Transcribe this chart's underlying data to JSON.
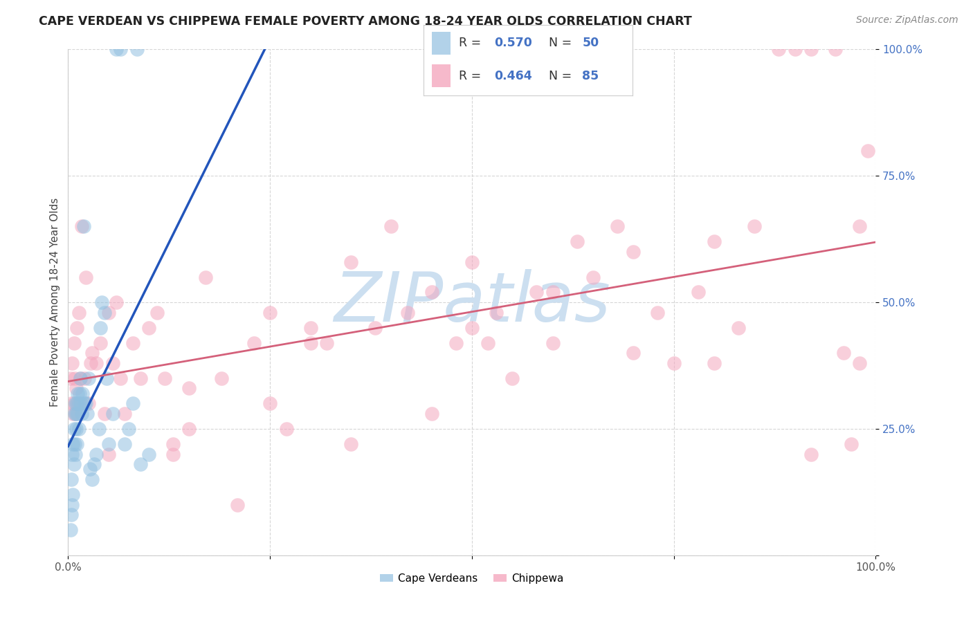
{
  "title": "CAPE VERDEAN VS CHIPPEWA FEMALE POVERTY AMONG 18-24 YEAR OLDS CORRELATION CHART",
  "source": "Source: ZipAtlas.com",
  "ylabel": "Female Poverty Among 18-24 Year Olds",
  "xlim": [
    0,
    1
  ],
  "ylim": [
    0,
    1
  ],
  "cape_verdean_color": "#92c0e0",
  "chippewa_color": "#f4a8bf",
  "trend_blue_color": "#2255bb",
  "trend_pink_color": "#d4607a",
  "watermark_color": "#ccdff0",
  "legend_value_color": "#4472c4",
  "cape_verdean_R": 0.57,
  "cape_verdean_N": 50,
  "chippewa_R": 0.464,
  "chippewa_N": 85,
  "cv_x": [
    0.003,
    0.004,
    0.004,
    0.005,
    0.005,
    0.006,
    0.006,
    0.007,
    0.007,
    0.008,
    0.008,
    0.009,
    0.009,
    0.01,
    0.01,
    0.011,
    0.011,
    0.012,
    0.012,
    0.013,
    0.013,
    0.014,
    0.015,
    0.016,
    0.017,
    0.018,
    0.019,
    0.02,
    0.022,
    0.024,
    0.025,
    0.027,
    0.03,
    0.032,
    0.035,
    0.038,
    0.04,
    0.042,
    0.045,
    0.048,
    0.05,
    0.055,
    0.06,
    0.065,
    0.07,
    0.075,
    0.08,
    0.085,
    0.09,
    0.1
  ],
  "cv_y": [
    0.05,
    0.08,
    0.15,
    0.1,
    0.2,
    0.12,
    0.22,
    0.18,
    0.25,
    0.22,
    0.28,
    0.2,
    0.3,
    0.25,
    0.28,
    0.3,
    0.22,
    0.28,
    0.32,
    0.25,
    0.3,
    0.32,
    0.35,
    0.3,
    0.28,
    0.32,
    0.65,
    0.3,
    0.3,
    0.28,
    0.35,
    0.17,
    0.15,
    0.18,
    0.2,
    0.25,
    0.45,
    0.5,
    0.48,
    0.35,
    0.22,
    0.28,
    1.0,
    1.0,
    0.22,
    0.25,
    0.3,
    1.0,
    0.18,
    0.2
  ],
  "ch_x": [
    0.003,
    0.004,
    0.005,
    0.006,
    0.007,
    0.007,
    0.008,
    0.009,
    0.01,
    0.011,
    0.012,
    0.013,
    0.015,
    0.017,
    0.02,
    0.022,
    0.025,
    0.028,
    0.03,
    0.035,
    0.04,
    0.045,
    0.05,
    0.055,
    0.06,
    0.065,
    0.07,
    0.08,
    0.09,
    0.1,
    0.11,
    0.12,
    0.13,
    0.15,
    0.17,
    0.19,
    0.21,
    0.23,
    0.25,
    0.27,
    0.3,
    0.32,
    0.35,
    0.38,
    0.4,
    0.42,
    0.45,
    0.48,
    0.5,
    0.53,
    0.55,
    0.58,
    0.6,
    0.63,
    0.65,
    0.68,
    0.7,
    0.73,
    0.75,
    0.78,
    0.8,
    0.83,
    0.85,
    0.88,
    0.9,
    0.92,
    0.95,
    0.97,
    0.98,
    0.99,
    0.13,
    0.25,
    0.35,
    0.45,
    0.52,
    0.6,
    0.7,
    0.8,
    0.92,
    0.96,
    0.05,
    0.15,
    0.3,
    0.5,
    0.98
  ],
  "ch_y": [
    0.35,
    0.3,
    0.38,
    0.28,
    0.42,
    0.3,
    0.35,
    0.28,
    0.33,
    0.45,
    0.3,
    0.48,
    0.35,
    0.65,
    0.35,
    0.55,
    0.3,
    0.38,
    0.4,
    0.38,
    0.42,
    0.28,
    0.2,
    0.38,
    0.5,
    0.35,
    0.28,
    0.42,
    0.35,
    0.45,
    0.48,
    0.35,
    0.2,
    0.25,
    0.55,
    0.35,
    0.1,
    0.42,
    0.48,
    0.25,
    0.45,
    0.42,
    0.58,
    0.45,
    0.65,
    0.48,
    0.52,
    0.42,
    0.58,
    0.48,
    0.35,
    0.52,
    0.42,
    0.62,
    0.55,
    0.65,
    0.4,
    0.48,
    0.38,
    0.52,
    0.62,
    0.45,
    0.65,
    1.0,
    1.0,
    1.0,
    1.0,
    0.22,
    0.38,
    0.8,
    0.22,
    0.3,
    0.22,
    0.28,
    0.42,
    0.52,
    0.6,
    0.38,
    0.2,
    0.4,
    0.48,
    0.33,
    0.42,
    0.45,
    0.65
  ]
}
